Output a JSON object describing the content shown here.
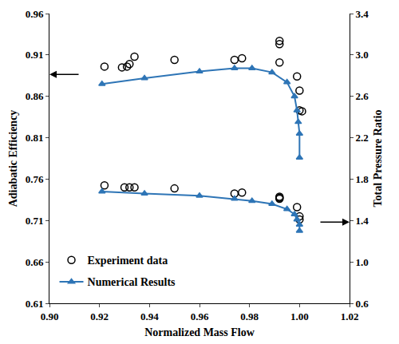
{
  "chart_data": {
    "type": "scatter",
    "x_label": "Normalized Mass Flow",
    "y_label": "Adiabatic Efficiency",
    "y2_label": "Total Pressure Ratio",
    "xlim": [
      0.9,
      1.02
    ],
    "xticks": [
      {
        "value": 0.9,
        "label": "0.90"
      },
      0.92,
      0.94,
      0.96,
      0.98,
      {
        "value": 1.0,
        "label": "1.00"
      },
      1.02
    ],
    "ylim": [
      0.61,
      0.96
    ],
    "yticks": [
      0.61,
      0.66,
      0.71,
      0.76,
      0.81,
      0.86,
      0.91,
      0.96
    ],
    "y2lim": [
      0.6,
      3.4
    ],
    "y2ticks": [
      0.6,
      {
        "value": 1.0,
        "label": "1.0"
      },
      1.4,
      1.8,
      2.2,
      2.6,
      {
        "value": 3.0,
        "label": "3.0"
      },
      3.4
    ],
    "grid": false,
    "legend": "lower left",
    "series": [
      {
        "name": "Experiment data",
        "type": "scatter",
        "marker": "circle-open",
        "line_style": "none",
        "color": "#000000",
        "x": [
          0.922,
          0.929,
          0.931,
          0.932,
          0.934,
          0.95,
          0.974,
          0.977,
          0.992,
          0.992,
          0.992,
          0.999,
          1.0,
          1.0,
          1.001
        ],
        "values": [
          0.896,
          0.895,
          0.896,
          0.899,
          0.908,
          0.904,
          0.904,
          0.906,
          0.901,
          0.923,
          0.927,
          0.884,
          0.867,
          0.843,
          0.842
        ]
      },
      {
        "name": "Numerical Results",
        "type": "line",
        "marker": "triangle-up",
        "line_style": "solid",
        "color": "#2e75b6",
        "x": [
          0.921,
          0.938,
          0.96,
          0.974,
          0.981,
          0.989,
          0.995,
          0.998,
          0.999,
          0.9995,
          1.0,
          1.0
        ],
        "values": [
          0.875,
          0.882,
          0.89,
          0.894,
          0.894,
          0.889,
          0.877,
          0.86,
          0.843,
          0.829,
          0.815,
          0.786
        ]
      },
      {
        "name": "Experiment data",
        "type": "scatter",
        "marker": "circle-open",
        "line_style": "none",
        "color": "#000000",
        "axis": "y2",
        "x": [
          0.922,
          0.93,
          0.932,
          0.934,
          0.95,
          0.974,
          0.977,
          0.992,
          0.992,
          0.992,
          0.999,
          1.0,
          1.0
        ],
        "values": [
          1.74,
          1.72,
          1.72,
          1.72,
          1.71,
          1.66,
          1.67,
          1.61,
          1.63,
          1.62,
          1.53,
          1.44,
          1.41
        ]
      },
      {
        "name": "Numerical Results",
        "type": "line",
        "marker": "triangle-up",
        "line_style": "solid",
        "color": "#2e75b6",
        "axis": "y2",
        "x": [
          0.921,
          0.938,
          0.96,
          0.974,
          0.981,
          0.989,
          0.995,
          0.998,
          0.999,
          1.0,
          1.0
        ],
        "values": [
          1.68,
          1.66,
          1.64,
          1.61,
          1.59,
          1.56,
          1.51,
          1.46,
          1.41,
          1.36,
          1.3
        ]
      }
    ]
  }
}
